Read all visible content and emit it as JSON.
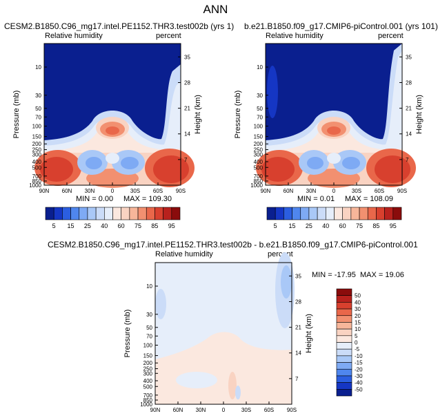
{
  "main_title": "ANN",
  "colors": {
    "rh_scale": [
      "#0a1f8f",
      "#1536c4",
      "#2b5ee0",
      "#4f86ee",
      "#7eaaf4",
      "#a9c8f7",
      "#cbdcf8",
      "#e6eefa",
      "#fbe8df",
      "#f9d3c2",
      "#f7b69a",
      "#f29070",
      "#e9674a",
      "#d8402e",
      "#b8211d",
      "#8a0c0c"
    ],
    "diff_scale": [
      "#0a1f8f",
      "#1536c4",
      "#2b5ee0",
      "#4f86ee",
      "#7eaaf4",
      "#a9c8f7",
      "#cbdcf8",
      "#e6eefa",
      "#fbe8df",
      "#f9d3c2",
      "#f7b69a",
      "#f29070",
      "#e9674a",
      "#d8402e",
      "#b8211d",
      "#8a0c0c"
    ]
  },
  "chart_data": [
    {
      "type": "heatmap",
      "title": "CESM2.B1850.C96_mg17.intel.PE1152.THR3.test002b (yrs 1)",
      "subtitle_left": "Relative humidity",
      "subtitle_right": "percent",
      "ylabel": "Pressure (mb)",
      "ylabel_right": "Height (km)",
      "x_ticks": [
        "90N",
        "60N",
        "30N",
        "0",
        "30S",
        "60S",
        "90S"
      ],
      "y_ticks": [
        "10",
        "30",
        "50",
        "70",
        "100",
        "150",
        "200",
        "250",
        "300",
        "400",
        "500",
        "700",
        "850",
        "1000"
      ],
      "y_ticks_right": [
        "35",
        "28",
        "21",
        "14",
        "7"
      ],
      "min_label": "MIN =  0.00",
      "max_label": "MAX = 109.30",
      "colorbar_labels": [
        "5",
        "15",
        "25",
        "40",
        "60",
        "75",
        "85",
        "95"
      ]
    },
    {
      "type": "heatmap",
      "title": "b.e21.B1850.f09_g17.CMIP6-piControl.001 (yrs 101)",
      "subtitle_left": "Relative humidity",
      "subtitle_right": "percent",
      "ylabel": "Pressure (mb)",
      "ylabel_right": "Height (km)",
      "x_ticks": [
        "90N",
        "60N",
        "30N",
        "0",
        "30S",
        "60S",
        "90S"
      ],
      "y_ticks": [
        "10",
        "30",
        "50",
        "70",
        "100",
        "150",
        "200",
        "250",
        "300",
        "400",
        "500",
        "700",
        "850",
        "1000"
      ],
      "y_ticks_right": [
        "35",
        "28",
        "21",
        "14",
        "7"
      ],
      "min_label": "MIN =  0.01",
      "max_label": "MAX = 108.09",
      "colorbar_labels": [
        "5",
        "15",
        "25",
        "40",
        "60",
        "75",
        "85",
        "95"
      ]
    },
    {
      "type": "heatmap",
      "title": "CESM2.B1850.C96_mg17.intel.PE1152.THR3.test002b - b.e21.B1850.f09_g17.CMIP6-piControl.001",
      "subtitle_left": "Relative humidity",
      "subtitle_right": "percent",
      "ylabel": "Pressure (mb)",
      "ylabel_right": "Height (km)",
      "x_ticks": [
        "90N",
        "60N",
        "30N",
        "0",
        "30S",
        "60S",
        "90S"
      ],
      "y_ticks": [
        "10",
        "30",
        "50",
        "70",
        "100",
        "150",
        "200",
        "250",
        "300",
        "400",
        "500",
        "700",
        "850",
        "1000"
      ],
      "y_ticks_right": [
        "35",
        "28",
        "21",
        "14",
        "7"
      ],
      "min_label": "MIN = -17.95",
      "max_label": "MAX =  19.06",
      "colorbar_labels": [
        "50",
        "40",
        "30",
        "20",
        "15",
        "10",
        "5",
        "0",
        "-5",
        "-10",
        "-15",
        "-20",
        "-30",
        "-40",
        "-50"
      ]
    }
  ]
}
